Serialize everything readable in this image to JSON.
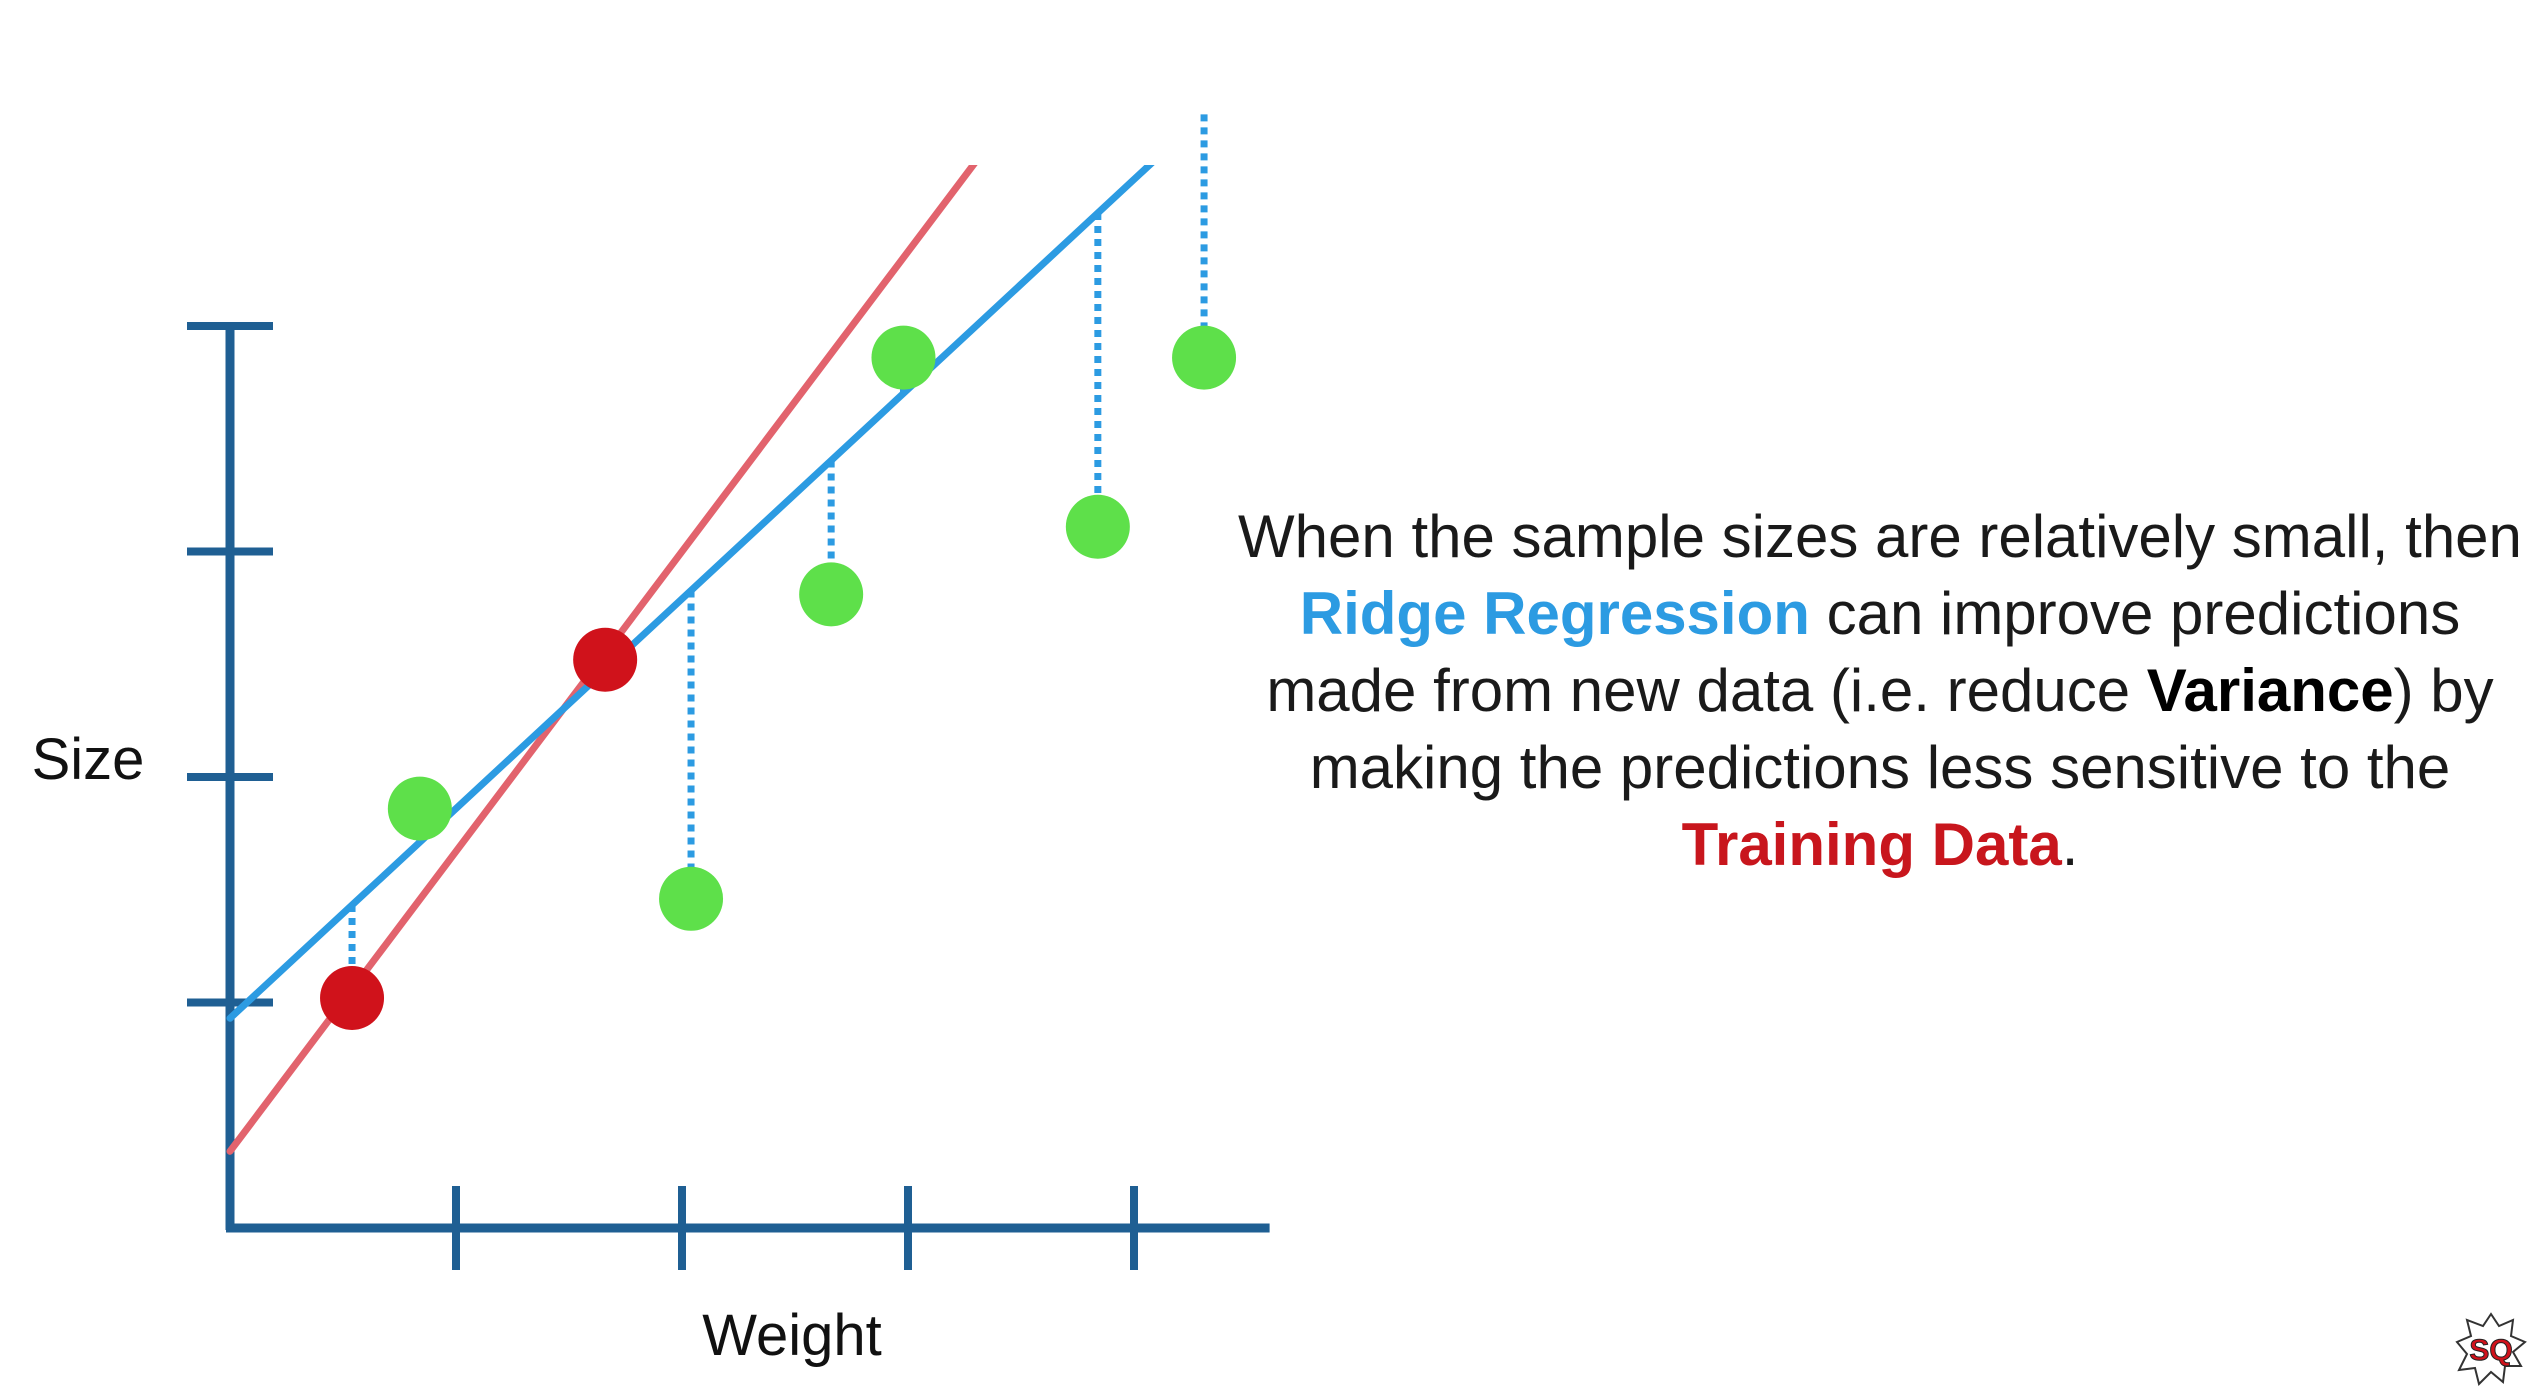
{
  "chart_data": {
    "type": "scatter",
    "xlabel": "Weight",
    "ylabel": "Size",
    "xlim": [
      0,
      4.6
    ],
    "ylim": [
      -1.05,
      4.6
    ],
    "x_ticks": [
      1,
      2,
      3,
      4
    ],
    "y_ticks": [
      1,
      2,
      3,
      4
    ],
    "grid": false,
    "legend": "none",
    "series": [
      {
        "role": "training",
        "color": "#d0121b",
        "points": [
          {
            "x": 0.54,
            "y": 1.02
          },
          {
            "x": 1.66,
            "y": 2.52
          }
        ]
      },
      {
        "role": "testing",
        "color": "#5ee04a",
        "points": [
          {
            "x": 0.84,
            "y": 1.86
          },
          {
            "x": 2.04,
            "y": 1.46
          },
          {
            "x": 2.66,
            "y": 2.81
          },
          {
            "x": 2.98,
            "y": 3.86
          },
          {
            "x": 3.84,
            "y": 3.11
          },
          {
            "x": 4.31,
            "y": 3.86
          }
        ]
      }
    ],
    "lines": [
      {
        "role": "least-squares-fit",
        "color": "#e2636d",
        "slope": 1.33,
        "intercept": 0.34,
        "x_range": [
          0,
          3.3
        ]
      },
      {
        "role": "ridge-regression-fit",
        "color": "#2c9be2",
        "slope": 0.93,
        "intercept": 0.93,
        "x_range": [
          0,
          4.3
        ]
      }
    ],
    "residuals": {
      "color": "#2c9be2",
      "style": "dotted",
      "from_line": "ridge-regression-fit",
      "point_refs": [
        "training-1",
        "testing-1",
        "testing-2",
        "testing-3",
        "testing-4",
        "testing-5",
        "testing-6"
      ]
    }
  },
  "explanation": {
    "part1": "When the sample sizes are relatively small, then ",
    "ridge": "Ridge Regression",
    "part2": " can improve predictions made from new data (i.e. reduce ",
    "variance": "Variance",
    "part3": ") by making the predictions less sensitive to the ",
    "training": "Training Data",
    "part4": "."
  },
  "colors": {
    "axis": "#1f5f93",
    "ridge_text": "#2c9be2",
    "training_text": "#c8161d",
    "body_text": "#1a1a1a",
    "variance_text": "#000000"
  },
  "logo": {
    "icon": "statquest-badge-icon"
  }
}
